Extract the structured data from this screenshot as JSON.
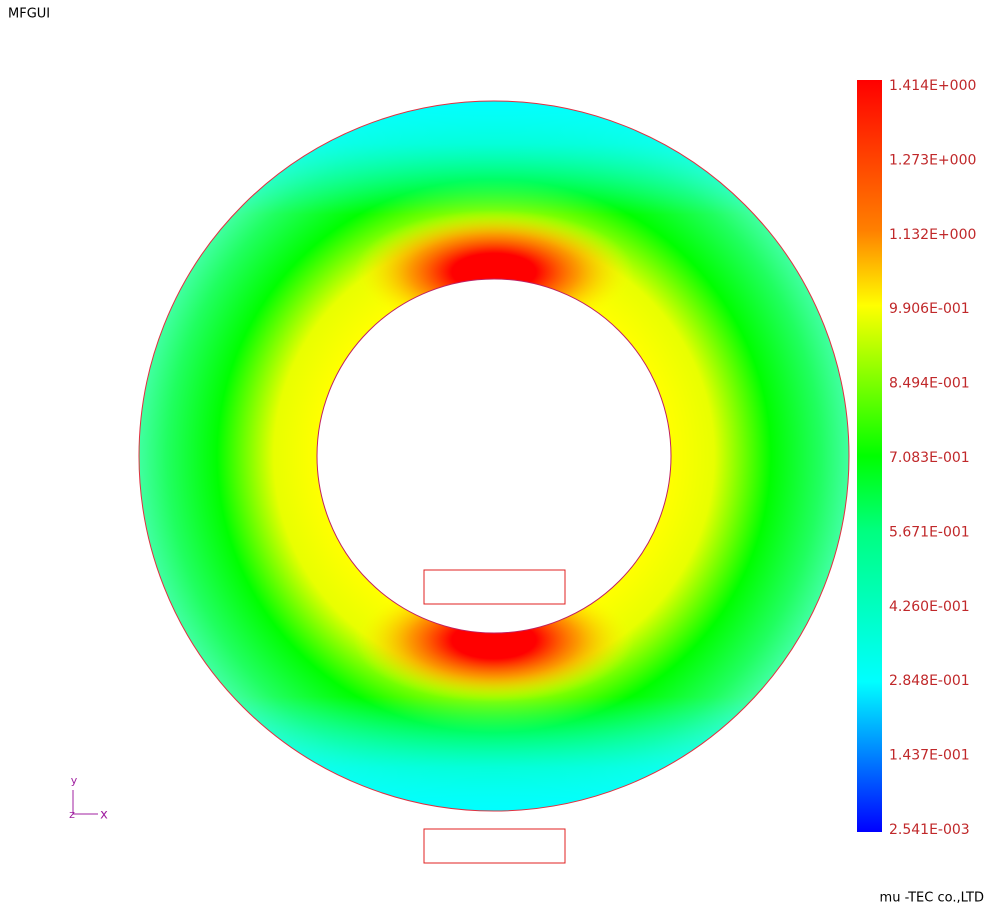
{
  "window": {
    "title": "MFGUI"
  },
  "legend": {
    "labels": [
      "1.414E+000",
      "1.273E+000",
      "1.132E+000",
      "9.906E-001",
      "8.494E-001",
      "7.083E-001",
      "5.671E-001",
      "4.260E-001",
      "2.848E-001",
      "1.437E-001",
      "2.541E-003"
    ]
  },
  "axes_triad": {
    "y": "y",
    "z": "z",
    "x": "x"
  },
  "footer": {
    "company": "mu -TEC co.,LTD"
  }
}
